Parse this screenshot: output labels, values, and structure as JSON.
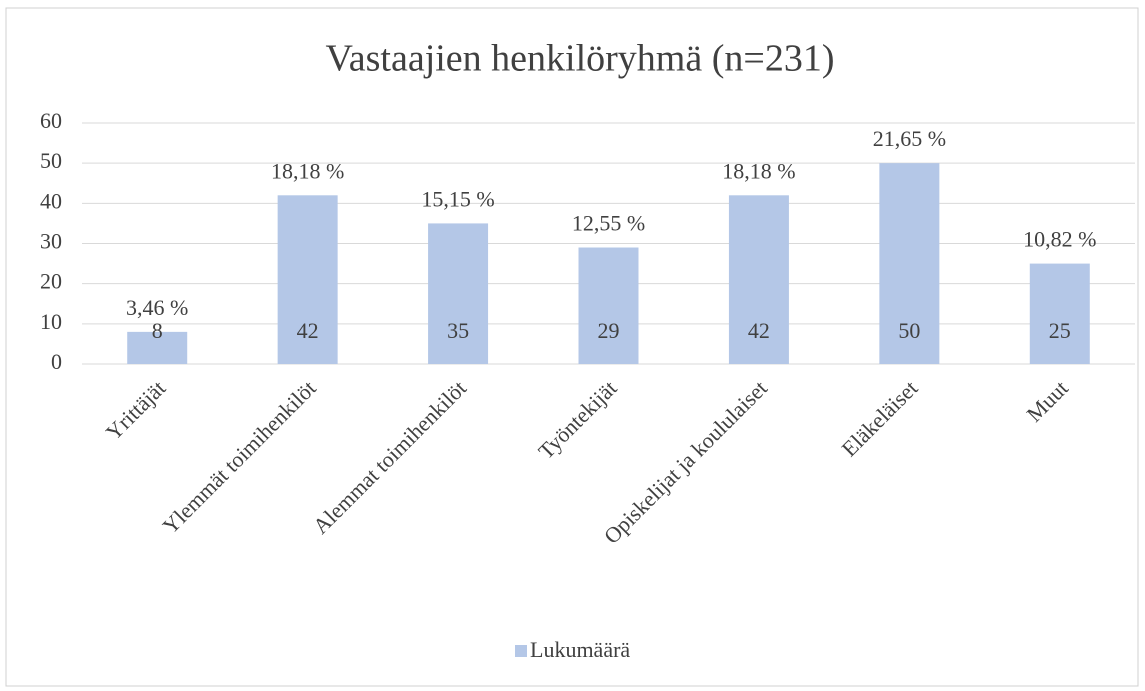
{
  "chart_data": {
    "type": "bar",
    "title": "Vastaajien henkilöryhmä  (n=231)",
    "categories": [
      "Yrittäjät",
      "Ylemmät toimihenkilöt",
      "Alemmat toimihenkilöt",
      "Työntekijät",
      "Opiskelijat ja koululaiset",
      "Eläkeläiset",
      "Muut"
    ],
    "series": [
      {
        "name": "Lukumäärä",
        "color": "#b4c7e7",
        "values": [
          8,
          42,
          35,
          29,
          42,
          50,
          25
        ]
      }
    ],
    "percent_labels": [
      "3,46 %",
      "18,18 %",
      "15,15 %",
      "12,55 %",
      "18,18 %",
      "21,65 %",
      "10,82 %"
    ],
    "ylim": [
      0,
      60
    ],
    "yticks": [
      0,
      10,
      20,
      30,
      40,
      50,
      60
    ],
    "grid": true,
    "legend": "bottom"
  }
}
